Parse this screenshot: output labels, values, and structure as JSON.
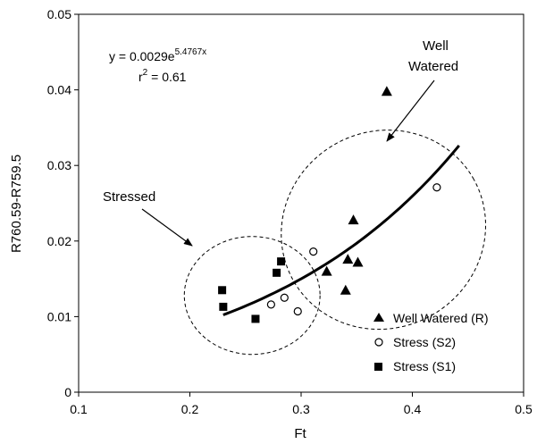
{
  "chart_data": {
    "type": "scatter",
    "title": "",
    "xlabel": "Ft",
    "ylabel": "R760.59-R759.5",
    "xlim": [
      0.1,
      0.5
    ],
    "ylim": [
      0,
      0.05
    ],
    "xticks": [
      "0.1",
      "0.2",
      "0.3",
      "0.4",
      "0.5"
    ],
    "yticks": [
      "0",
      "0.01",
      "0.02",
      "0.03",
      "0.04",
      "0.05"
    ],
    "equation": {
      "prefix": "y = 0.0029e",
      "exponent": "5.4767x",
      "r2_prefix": "r",
      "r2_power": "2",
      "r2_value": " = 0.61"
    },
    "annotations": {
      "well_watered_line1": "Well",
      "well_watered_line2": "Watered",
      "stressed": "Stressed"
    },
    "trendline": {
      "coef": 0.0029,
      "exp": 5.4767,
      "x_start": 0.23,
      "x_end": 0.442
    },
    "legend": {
      "position": "bottom-right",
      "entries": [
        "Well Watered (R)",
        "Stress (S2)",
        "Stress (S1)"
      ]
    },
    "series": [
      {
        "name": "Well Watered (R)",
        "marker": "triangle",
        "points": [
          [
            0.323,
            0.016
          ],
          [
            0.34,
            0.0135
          ],
          [
            0.342,
            0.0176
          ],
          [
            0.347,
            0.0228
          ],
          [
            0.351,
            0.0172
          ],
          [
            0.377,
            0.0398
          ]
        ]
      },
      {
        "name": "Stress (S2)",
        "marker": "circle-open",
        "points": [
          [
            0.273,
            0.0116
          ],
          [
            0.285,
            0.0125
          ],
          [
            0.297,
            0.0107
          ],
          [
            0.311,
            0.0186
          ],
          [
            0.422,
            0.0271
          ]
        ]
      },
      {
        "name": "Stress (S1)",
        "marker": "square",
        "points": [
          [
            0.229,
            0.0135
          ],
          [
            0.23,
            0.0113
          ],
          [
            0.259,
            0.0097
          ],
          [
            0.278,
            0.0158
          ],
          [
            0.282,
            0.0173
          ]
        ]
      }
    ],
    "ellipses": [
      {
        "label": "stressed-group",
        "cx": 0.256,
        "cy": 0.0128,
        "rx": 0.061,
        "ry": 0.0078,
        "angle": 0
      },
      {
        "label": "well-watered-group",
        "cx": 0.374,
        "cy": 0.0215,
        "rx": 0.093,
        "ry": 0.013,
        "angle": -30
      }
    ]
  }
}
